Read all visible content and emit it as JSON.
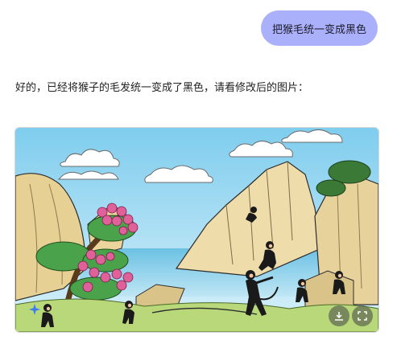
{
  "chat": {
    "user_message": "把猴毛统一变成黑色",
    "assistant_message": "好的，已经将猴子的毛发统一变成了黑色，请看修改后的图片："
  },
  "image": {
    "icons": {
      "badge": "sparkle-star-icon",
      "download": "download-icon",
      "expand": "fullscreen-icon"
    }
  },
  "colors": {
    "user_bubble": "#abb0fb",
    "sky": "#a9dcf2",
    "monkey_fur": "#1a1a1a",
    "peach": "#e0609a",
    "tree_leaves": "#4aa24b"
  }
}
